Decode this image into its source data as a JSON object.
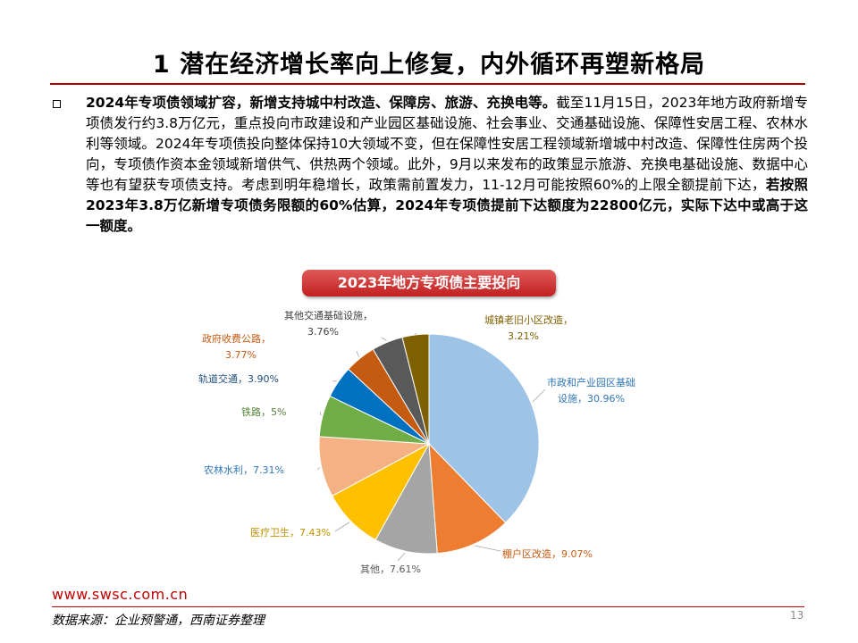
{
  "slide": {
    "title": "1 潜在经济增长率向上修复，内外循环再塑新格局",
    "body_bold_lead": "2024年专项债领域扩容，新增支持城中村改造、保障房、旅游、充换电等。",
    "body_text": "截至11月15日，2023年地方政府新增专项债发行约3.8万亿元，重点投向市政建设和产业园区基础设施、社会事业、交通基础设施、保障性安居工程、农林水利等领域。2024年专项债投向整体保持10大领域不变，但在保障性安居工程领域新增城中村改造、保障性住房两个投向，专项债作资本金领域新增供气、供热两个领域。此外，9月以来发布的政策显示旅游、充换电基础设施、数据中心等也有望获专项债支持。考虑到明年稳增长，政策需前置发力，11-12月可能按照60%的上限全额提前下达，",
    "body_bold_tail": "若按照2023年3.8万亿新增专项债务限额的60%估算，2024年专项债提前下达额度为22800亿元，实际下达中或高于这一额度。"
  },
  "chart_data": {
    "type": "pie",
    "title": "2023年地方专项债主要投向",
    "slices": [
      {
        "name": "市政和产业园区基础设施",
        "label_line1": "市政和产业园区基础",
        "label_line2": "设施，30.96%",
        "value": 30.96,
        "color": "#9dc3e6",
        "text_color": "#2e75b6"
      },
      {
        "name": "棚户区改造",
        "label_line1": "棚户区改造，9.07%",
        "label_line2": "",
        "value": 9.07,
        "color": "#ed7d31",
        "text_color": "#c55a11"
      },
      {
        "name": "其他",
        "label_line1": "其他，7.61%",
        "label_line2": "",
        "value": 7.61,
        "color": "#a5a5a5",
        "text_color": "#595959"
      },
      {
        "name": "医疗卫生",
        "label_line1": "医疗卫生，7.43%",
        "label_line2": "",
        "value": 7.43,
        "color": "#ffc000",
        "text_color": "#bf9000"
      },
      {
        "name": "农林水利",
        "label_line1": "农林水利，7.31%",
        "label_line2": "",
        "value": 7.31,
        "color": "#f4b183",
        "text_color": "#2e75b6"
      },
      {
        "name": "铁路",
        "label_line1": "铁路，5%",
        "label_line2": "",
        "value": 5.0,
        "color": "#70ad47",
        "text_color": "#548235"
      },
      {
        "name": "轨道交通",
        "label_line1": "轨道交通，3.90%",
        "label_line2": "",
        "value": 3.9,
        "color": "#0070c0",
        "text_color": "#1f4e79"
      },
      {
        "name": "政府收费公路",
        "label_line1": "政府收费公路，",
        "label_line2": "3.77%",
        "value": 3.77,
        "color": "#c55a11",
        "text_color": "#c55a11"
      },
      {
        "name": "其他交通基础设施",
        "label_line1": "其他交通基础设施，",
        "label_line2": "3.76%",
        "value": 3.76,
        "color": "#595959",
        "text_color": "#404040"
      },
      {
        "name": "城镇老旧小区改造",
        "label_line1": "城镇老旧小区改造，",
        "label_line2": "3.21%",
        "value": 3.21,
        "color": "#7f6000",
        "text_color": "#7f6000"
      }
    ]
  },
  "footer": {
    "url": "www.swsc.com.cn",
    "source": "数据来源：企业预警通，西南证券整理",
    "page": "13"
  }
}
